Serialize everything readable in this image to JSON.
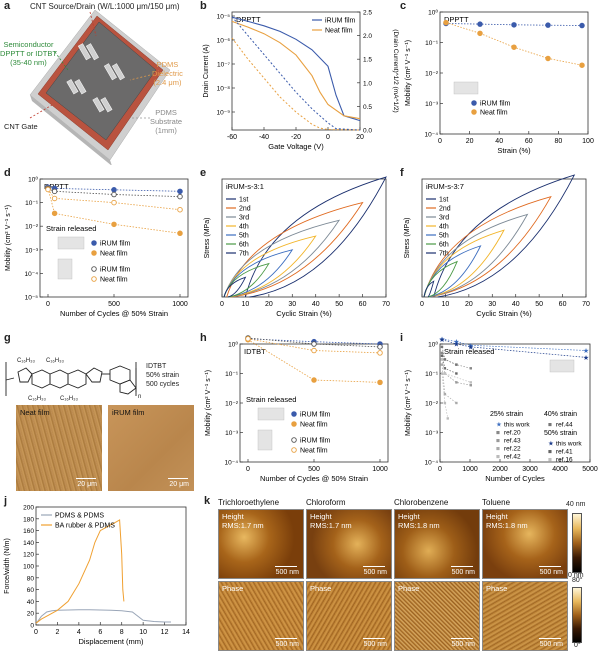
{
  "labels": {
    "a": "a",
    "b": "b",
    "c": "c",
    "d": "d",
    "e": "e",
    "f": "f",
    "g": "g",
    "h": "h",
    "i": "i",
    "j": "j",
    "k": "k"
  },
  "panel_a": {
    "cnt_source_drain": "CNT Source/Drain (W/L:1000 μm/150 μm)",
    "semiconductor": "Semiconductor\nDPPTT or IDTBT\n(35-40 nm)",
    "pdms_dielectric": "PDMS\nDielectric\n(2.4 μm)",
    "cnt_gate": "CNT Gate",
    "pdms_substrate": "PDMS\nSubstrate\n(1mm)",
    "colors": {
      "semi": "#2e8b3a",
      "dielectric": "#e09a4a",
      "gate": "#c0392b",
      "substrate": "#9a9a9a"
    }
  },
  "panel_b": {
    "chart_data": {
      "type": "line",
      "title": "DPPTT",
      "xlabel": "Gate Voltage (V)",
      "ylabel_left": "Drain Current (A)",
      "ylabel_right": "(Drain Current)^1/2 (mA^1/2)",
      "xlim": [
        -60,
        20
      ],
      "ylim_log": [
        1e-10,
        1e-05
      ],
      "ylim_right": [
        0,
        2.5
      ],
      "x_ticks": [
        "-60",
        "-40",
        "-20",
        "0",
        "20"
      ],
      "y_ticks_left": [
        "10⁻⁵",
        "10⁻⁶",
        "10⁻⁷",
        "10⁻⁸",
        "10⁻⁹"
      ],
      "y_ticks_right": [
        "0.0",
        "0.5",
        "1.0",
        "1.5",
        "2.0",
        "2.5"
      ],
      "series": [
        {
          "name": "iRUM film",
          "color": "#3b5bab",
          "x": [
            -60,
            -50,
            -40,
            -30,
            -20,
            -10,
            0,
            5,
            10,
            20
          ],
          "y": [
            6e-06,
            4e-06,
            2.6e-06,
            1.5e-06,
            7e-07,
            2.5e-07,
            5e-08,
            3e-09,
            4e-10,
            2.5e-10
          ]
        },
        {
          "name": "Neat film",
          "color": "#e8a040",
          "x": [
            -60,
            -50,
            -40,
            -30,
            -20,
            -10,
            -5,
            0,
            10,
            20
          ],
          "y": [
            4e-06,
            2.3e-06,
            1.2e-06,
            5e-07,
            1.5e-07,
            2e-08,
            4e-09,
            1.2e-09,
            4e-10,
            3e-10
          ]
        }
      ],
      "sqrt_series": [
        {
          "name": "iRUM film",
          "color": "#3b5bab",
          "x": [
            -60,
            -50,
            -40,
            -30,
            -20,
            -10,
            0,
            5,
            20
          ],
          "y": [
            2.4,
            2.0,
            1.6,
            1.2,
            0.8,
            0.45,
            0.15,
            0.03,
            0.0
          ]
        },
        {
          "name": "Neat film",
          "color": "#e8a040",
          "x": [
            -60,
            -50,
            -40,
            -30,
            -20,
            -10,
            -5,
            0,
            20
          ],
          "y": [
            1.95,
            1.5,
            1.1,
            0.7,
            0.38,
            0.12,
            0.04,
            0.01,
            0.0
          ]
        }
      ]
    }
  },
  "panel_c": {
    "chart_data": {
      "type": "scatter",
      "title": "DPPTT",
      "xlabel": "Strain (%)",
      "ylabel": "Mobility (cm² V⁻¹ s⁻¹)",
      "xlim": [
        0,
        100
      ],
      "ylim_log": [
        0.0001,
        1
      ],
      "x_ticks": [
        "0",
        "20",
        "40",
        "60",
        "80",
        "100"
      ],
      "y_ticks": [
        "10⁰",
        "10⁻¹",
        "10⁻²",
        "10⁻³",
        "10⁻⁴"
      ],
      "series": [
        {
          "name": "iRUM film",
          "color": "#3b5bab",
          "x": [
            0,
            25,
            50,
            75,
            100
          ],
          "y": [
            0.42,
            0.4,
            0.38,
            0.37,
            0.36
          ]
        },
        {
          "name": "Neat film",
          "color": "#e8a040",
          "x": [
            0,
            25,
            50,
            75,
            100
          ],
          "y": [
            0.45,
            0.2,
            0.07,
            0.03,
            0.018
          ]
        }
      ]
    }
  },
  "panel_d": {
    "chart_data": {
      "type": "scatter",
      "title": "DPPTT",
      "xlabel": "Number of Cycles @ 50% Strain",
      "ylabel": "Mobility (cm² V⁻¹ s⁻¹)",
      "xlim": [
        0,
        1000
      ],
      "ylim_log": [
        1e-05,
        1
      ],
      "x_ticks": [
        "0",
        "500",
        "1000"
      ],
      "y_ticks": [
        "10⁰",
        "10⁻¹",
        "10⁻²",
        "10⁻³",
        "10⁻⁴",
        "10⁻⁵"
      ],
      "annotation": "Strain released",
      "series": [
        {
          "name": "iRUM film",
          "color": "#3b5bab",
          "marker": "filled",
          "x": [
            0,
            50,
            500,
            1000
          ],
          "y": [
            0.45,
            0.4,
            0.35,
            0.3
          ]
        },
        {
          "name": "Neat film",
          "color": "#e8a040",
          "marker": "filled",
          "x": [
            0,
            50,
            500,
            1000
          ],
          "y": [
            0.4,
            0.035,
            0.012,
            0.005
          ]
        },
        {
          "name": "iRUM film",
          "color": "#555555",
          "marker": "open",
          "x": [
            0,
            50,
            500,
            1000
          ],
          "y": [
            0.38,
            0.3,
            0.22,
            0.18
          ]
        },
        {
          "name": "Neat film",
          "color": "#e8a040",
          "marker": "open",
          "x": [
            0,
            50,
            500,
            1000
          ],
          "y": [
            0.36,
            0.15,
            0.1,
            0.05
          ]
        }
      ]
    }
  },
  "panel_e": {
    "chart_data": {
      "type": "line",
      "legend_title": "iRUM-s-3:1",
      "xlabel": "Cyclic Strain (%)",
      "ylabel": "Stress (MPa)",
      "xlim": [
        0,
        70
      ],
      "ylim": [
        0,
        3
      ],
      "x_ticks": [
        "0",
        "10",
        "20",
        "30",
        "40",
        "50",
        "60",
        "70"
      ],
      "series": [
        {
          "name": "1st",
          "color": "#1a2f6e",
          "peak_x": 70,
          "peak_y": 3.05
        },
        {
          "name": "2nd",
          "color": "#e06a20",
          "peak_x": 60,
          "peak_y": 2.4
        },
        {
          "name": "3rd",
          "color": "#7d8a96",
          "peak_x": 50,
          "peak_y": 1.95
        },
        {
          "name": "4th",
          "color": "#f2b52a",
          "peak_x": 40,
          "peak_y": 1.55
        },
        {
          "name": "5th",
          "color": "#3b6dbf",
          "peak_x": 30,
          "peak_y": 1.2
        },
        {
          "name": "6th",
          "color": "#4b9a46",
          "peak_x": 20,
          "peak_y": 0.85
        },
        {
          "name": "7th",
          "color": "#1a2f6e",
          "peak_x": 10,
          "peak_y": 0.5
        }
      ]
    }
  },
  "panel_f": {
    "chart_data": {
      "type": "line",
      "legend_title": "iRUM-s-3:7",
      "xlabel": "Cyclic Strain (%)",
      "ylabel": "Stress (MPa)",
      "xlim": [
        0,
        70
      ],
      "ylim": [
        0,
        3
      ],
      "x_ticks": [
        "0",
        "10",
        "20",
        "30",
        "40",
        "50",
        "60",
        "70"
      ],
      "series": [
        {
          "name": "1st",
          "color": "#1a2f6e",
          "peak_x": 65,
          "peak_y": 3.1
        },
        {
          "name": "2nd",
          "color": "#e06a20",
          "peak_x": 55,
          "peak_y": 2.55
        },
        {
          "name": "3rd",
          "color": "#7d8a96",
          "peak_x": 45,
          "peak_y": 2.1
        },
        {
          "name": "4th",
          "color": "#f2b52a",
          "peak_x": 35,
          "peak_y": 1.7
        },
        {
          "name": "5th",
          "color": "#3b6dbf",
          "peak_x": 25,
          "peak_y": 1.3
        },
        {
          "name": "6th",
          "color": "#4b9a46",
          "peak_x": 15,
          "peak_y": 0.9
        },
        {
          "name": "7th",
          "color": "#1a2f6e",
          "peak_x": 5,
          "peak_y": 0.4
        }
      ]
    }
  },
  "panel_g": {
    "sub1": "C₁₆H₃₃",
    "sub2": "C₁₆H₃₃",
    "sub3": "C₁₆H₃₃",
    "sub4": "C₁₆H₃₃",
    "n": "n",
    "caption_name": "IDTBT",
    "caption_strain": "50% strain",
    "caption_cycles": "500 cycles",
    "neat_film": "Neat film",
    "irum_film": "iRUM film",
    "scale": "20 μm"
  },
  "panel_h": {
    "chart_data": {
      "type": "scatter",
      "title": "IDTBT",
      "xlabel": "Number of Cycles @ 50% Strain",
      "ylabel": "Mobility (cm² V⁻¹ s⁻¹)",
      "xlim": [
        0,
        1000
      ],
      "ylim_log": [
        0.0001,
        1
      ],
      "x_ticks": [
        "0",
        "500",
        "1000"
      ],
      "y_ticks": [
        "10⁰",
        "10⁻¹",
        "10⁻²",
        "10⁻³",
        "10⁻⁴"
      ],
      "annotation": "Strain released",
      "series": [
        {
          "name": "iRUM film",
          "color": "#3b5bab",
          "marker": "filled",
          "x": [
            0,
            500,
            1000
          ],
          "y": [
            1.5,
            1.2,
            1.0
          ]
        },
        {
          "name": "Neat film",
          "color": "#e8a040",
          "marker": "filled",
          "x": [
            0,
            500,
            1000
          ],
          "y": [
            1.4,
            0.06,
            0.05
          ]
        },
        {
          "name": "iRUM film",
          "color": "#555555",
          "marker": "open",
          "x": [
            0,
            500,
            1000
          ],
          "y": [
            1.6,
            1.0,
            0.8
          ]
        },
        {
          "name": "Neat film",
          "color": "#e8a040",
          "marker": "open",
          "x": [
            0,
            500,
            1000
          ],
          "y": [
            1.5,
            0.6,
            0.5
          ]
        }
      ]
    }
  },
  "panel_i": {
    "chart_data": {
      "type": "scatter",
      "title": "Strain released",
      "xlabel": "Number of Cycles",
      "ylabel": "Mobility (cm² V⁻¹ s⁻¹)",
      "xlim": [
        0,
        5000
      ],
      "ylim_log": [
        0.0001,
        1
      ],
      "x_ticks": [
        "0",
        "1000",
        "2000",
        "3000",
        "4000",
        "5000"
      ],
      "y_ticks": [
        "10⁰",
        "10⁻¹",
        "10⁻²",
        "10⁻³",
        "10⁻⁴"
      ],
      "legend_25": "25% strain",
      "legend_40": "40% strain",
      "legend_50": "50% strain",
      "series": [
        {
          "name": "this work",
          "group": "25",
          "color": "#3b6dbf",
          "x": [
            0,
            500,
            1000,
            5000
          ],
          "y": [
            1.5,
            1.2,
            0.9,
            0.6
          ]
        },
        {
          "name": "ref.20",
          "group": "25",
          "color": "#888888",
          "x": [
            0,
            100,
            500,
            1000
          ],
          "y": [
            0.5,
            0.3,
            0.2,
            0.15
          ]
        },
        {
          "name": "ref.43",
          "group": "25",
          "color": "#999999",
          "x": [
            0,
            100,
            500,
            1000
          ],
          "y": [
            0.3,
            0.1,
            0.05,
            0.04
          ]
        },
        {
          "name": "ref.22",
          "group": "25",
          "color": "#aaaaaa",
          "x": [
            0,
            100,
            500
          ],
          "y": [
            0.2,
            0.02,
            0.01
          ]
        },
        {
          "name": "ref.42",
          "group": "25",
          "color": "#bbbbbb",
          "x": [
            0,
            100,
            200
          ],
          "y": [
            0.1,
            0.01,
            0.003
          ]
        },
        {
          "name": "ref.44",
          "group": "40",
          "color": "#777777",
          "x": [
            0,
            100,
            500
          ],
          "y": [
            0.8,
            0.3,
            0.2
          ]
        },
        {
          "name": "this work",
          "group": "50",
          "color": "#1a3a8a",
          "x": [
            0,
            500,
            1000,
            5000
          ],
          "y": [
            1.4,
            1.0,
            0.8,
            0.35
          ]
        },
        {
          "name": "ref.41",
          "group": "50",
          "color": "#666666",
          "x": [
            0,
            100,
            500
          ],
          "y": [
            0.4,
            0.15,
            0.1
          ]
        },
        {
          "name": "ref.16",
          "group": "50",
          "color": "#c0c0c0",
          "x": [
            0,
            100,
            1000
          ],
          "y": [
            0.3,
            0.1,
            0.05
          ]
        }
      ]
    }
  },
  "panel_j": {
    "chart_data": {
      "type": "line",
      "xlabel": "Displacement (mm)",
      "ylabel": "Force/width (N/m)",
      "xlim": [
        0,
        14
      ],
      "ylim": [
        0,
        200
      ],
      "x_ticks": [
        "0",
        "2",
        "4",
        "6",
        "8",
        "10",
        "12",
        "14"
      ],
      "y_ticks": [
        "0",
        "20",
        "40",
        "60",
        "80",
        "100",
        "120",
        "140",
        "160",
        "180",
        "200"
      ],
      "series": [
        {
          "name": "PDMS & PDMS",
          "color": "#9aa6b8",
          "x": [
            0,
            0.5,
            1,
            1.5,
            2,
            3,
            4,
            5,
            6,
            7,
            8,
            9,
            10,
            11,
            12,
            12.6
          ],
          "y": [
            2,
            15,
            22,
            24,
            25,
            25.5,
            26,
            26,
            25.5,
            25,
            24,
            22,
            8,
            6,
            5,
            5
          ]
        },
        {
          "name": "BA rubber & PDMS",
          "color": "#f0a030",
          "x": [
            0,
            0.5,
            1,
            2,
            3,
            4,
            5,
            5.5,
            6,
            6.5,
            7,
            7.5,
            7.8,
            8,
            8.1,
            8.2
          ],
          "y": [
            3,
            10,
            15,
            25,
            40,
            70,
            110,
            140,
            160,
            165,
            170,
            175,
            178,
            120,
            60,
            40
          ]
        }
      ]
    }
  },
  "panel_k": {
    "solvents": [
      "Trichloroethylene",
      "Chloroform",
      "Chlorobenzene",
      "Toluene"
    ],
    "height_label": "Height",
    "phase_label": "Phase",
    "rms": [
      "RMS:1.7 nm",
      "RMS:1.7 nm",
      "RMS:1.8 nm",
      "RMS:1.8 nm"
    ],
    "scale": "500 nm",
    "cbar_height_max": "40 nm",
    "cbar_height_min": "0 nm",
    "cbar_phase_max": "80°",
    "cbar_phase_min": "0°"
  }
}
